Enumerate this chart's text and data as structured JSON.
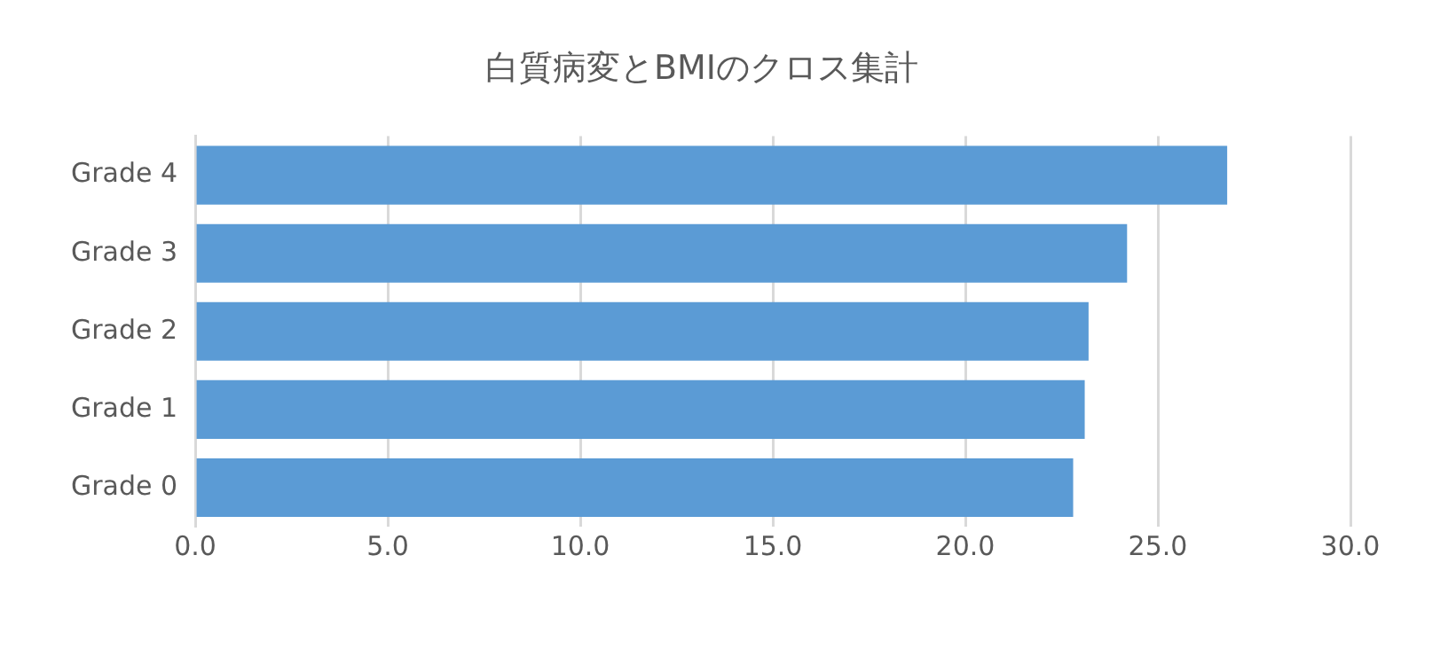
{
  "chart_data": {
    "type": "bar",
    "orientation": "horizontal",
    "title": "白質病変とBMIのクロス集計",
    "categories": [
      "Grade 4",
      "Grade 3",
      "Grade 2",
      "Grade 1",
      "Grade 0"
    ],
    "values": [
      26.8,
      24.2,
      23.2,
      23.1,
      22.8
    ],
    "color": "#5b9bd5",
    "xlim": [
      0,
      30
    ],
    "xticks": [
      {
        "value": 0,
        "label": "0.0"
      },
      {
        "value": 5,
        "label": "5.0"
      },
      {
        "value": 10,
        "label": "10.0"
      },
      {
        "value": 15,
        "label": "15.0"
      },
      {
        "value": 20,
        "label": "20.0"
      },
      {
        "value": 25,
        "label": "25.0"
      },
      {
        "value": 30,
        "label": "30.0"
      }
    ],
    "grid": "x"
  }
}
